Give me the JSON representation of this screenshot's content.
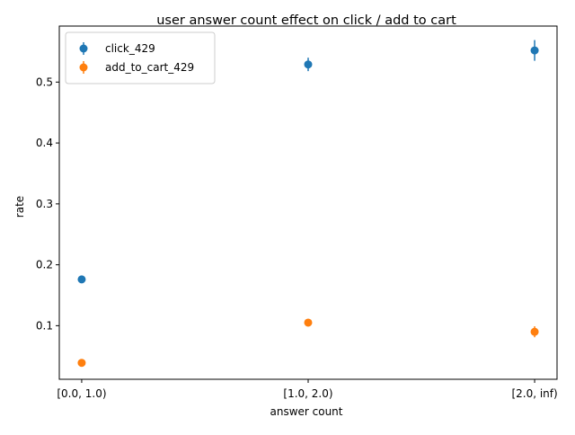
{
  "chart_data": {
    "type": "scatter",
    "title": "user answer count effect on click / add to cart",
    "xlabel": "answer count",
    "ylabel": "rate",
    "categories": [
      "[0.0, 1.0)",
      "[1.0, 2.0)",
      "[2.0, inf)"
    ],
    "ylim": [
      0.012,
      0.592
    ],
    "yticks": [
      "0.1",
      "0.2",
      "0.3",
      "0.4",
      "0.5"
    ],
    "grid": false,
    "legend_position": "top-left",
    "error_bars": true,
    "series": [
      {
        "name": "click_429",
        "color": "#1f77b4",
        "values": [
          0.176,
          0.529,
          0.552
        ],
        "errors": [
          0.004,
          0.011,
          0.017
        ]
      },
      {
        "name": "add_to_cart_429",
        "color": "#ff7f0e",
        "values": [
          0.039,
          0.105,
          0.09
        ],
        "errors": [
          0.002,
          0.005,
          0.009
        ]
      }
    ]
  }
}
